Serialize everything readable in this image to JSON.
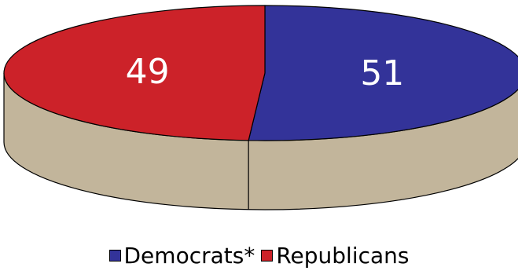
{
  "chart_data": {
    "type": "pie",
    "title": "",
    "slices": [
      {
        "label": "Democrats*",
        "value": 51,
        "display": "51",
        "color": "#333399"
      },
      {
        "label": "Republicans",
        "value": 49,
        "display": "49",
        "color": "#cc2229"
      }
    ],
    "side_color": "#c2b59b",
    "legend_position": "bottom-center",
    "style": "3d"
  },
  "legend": {
    "democrats_label": "Democrats*",
    "republicans_label": "Republicans"
  }
}
